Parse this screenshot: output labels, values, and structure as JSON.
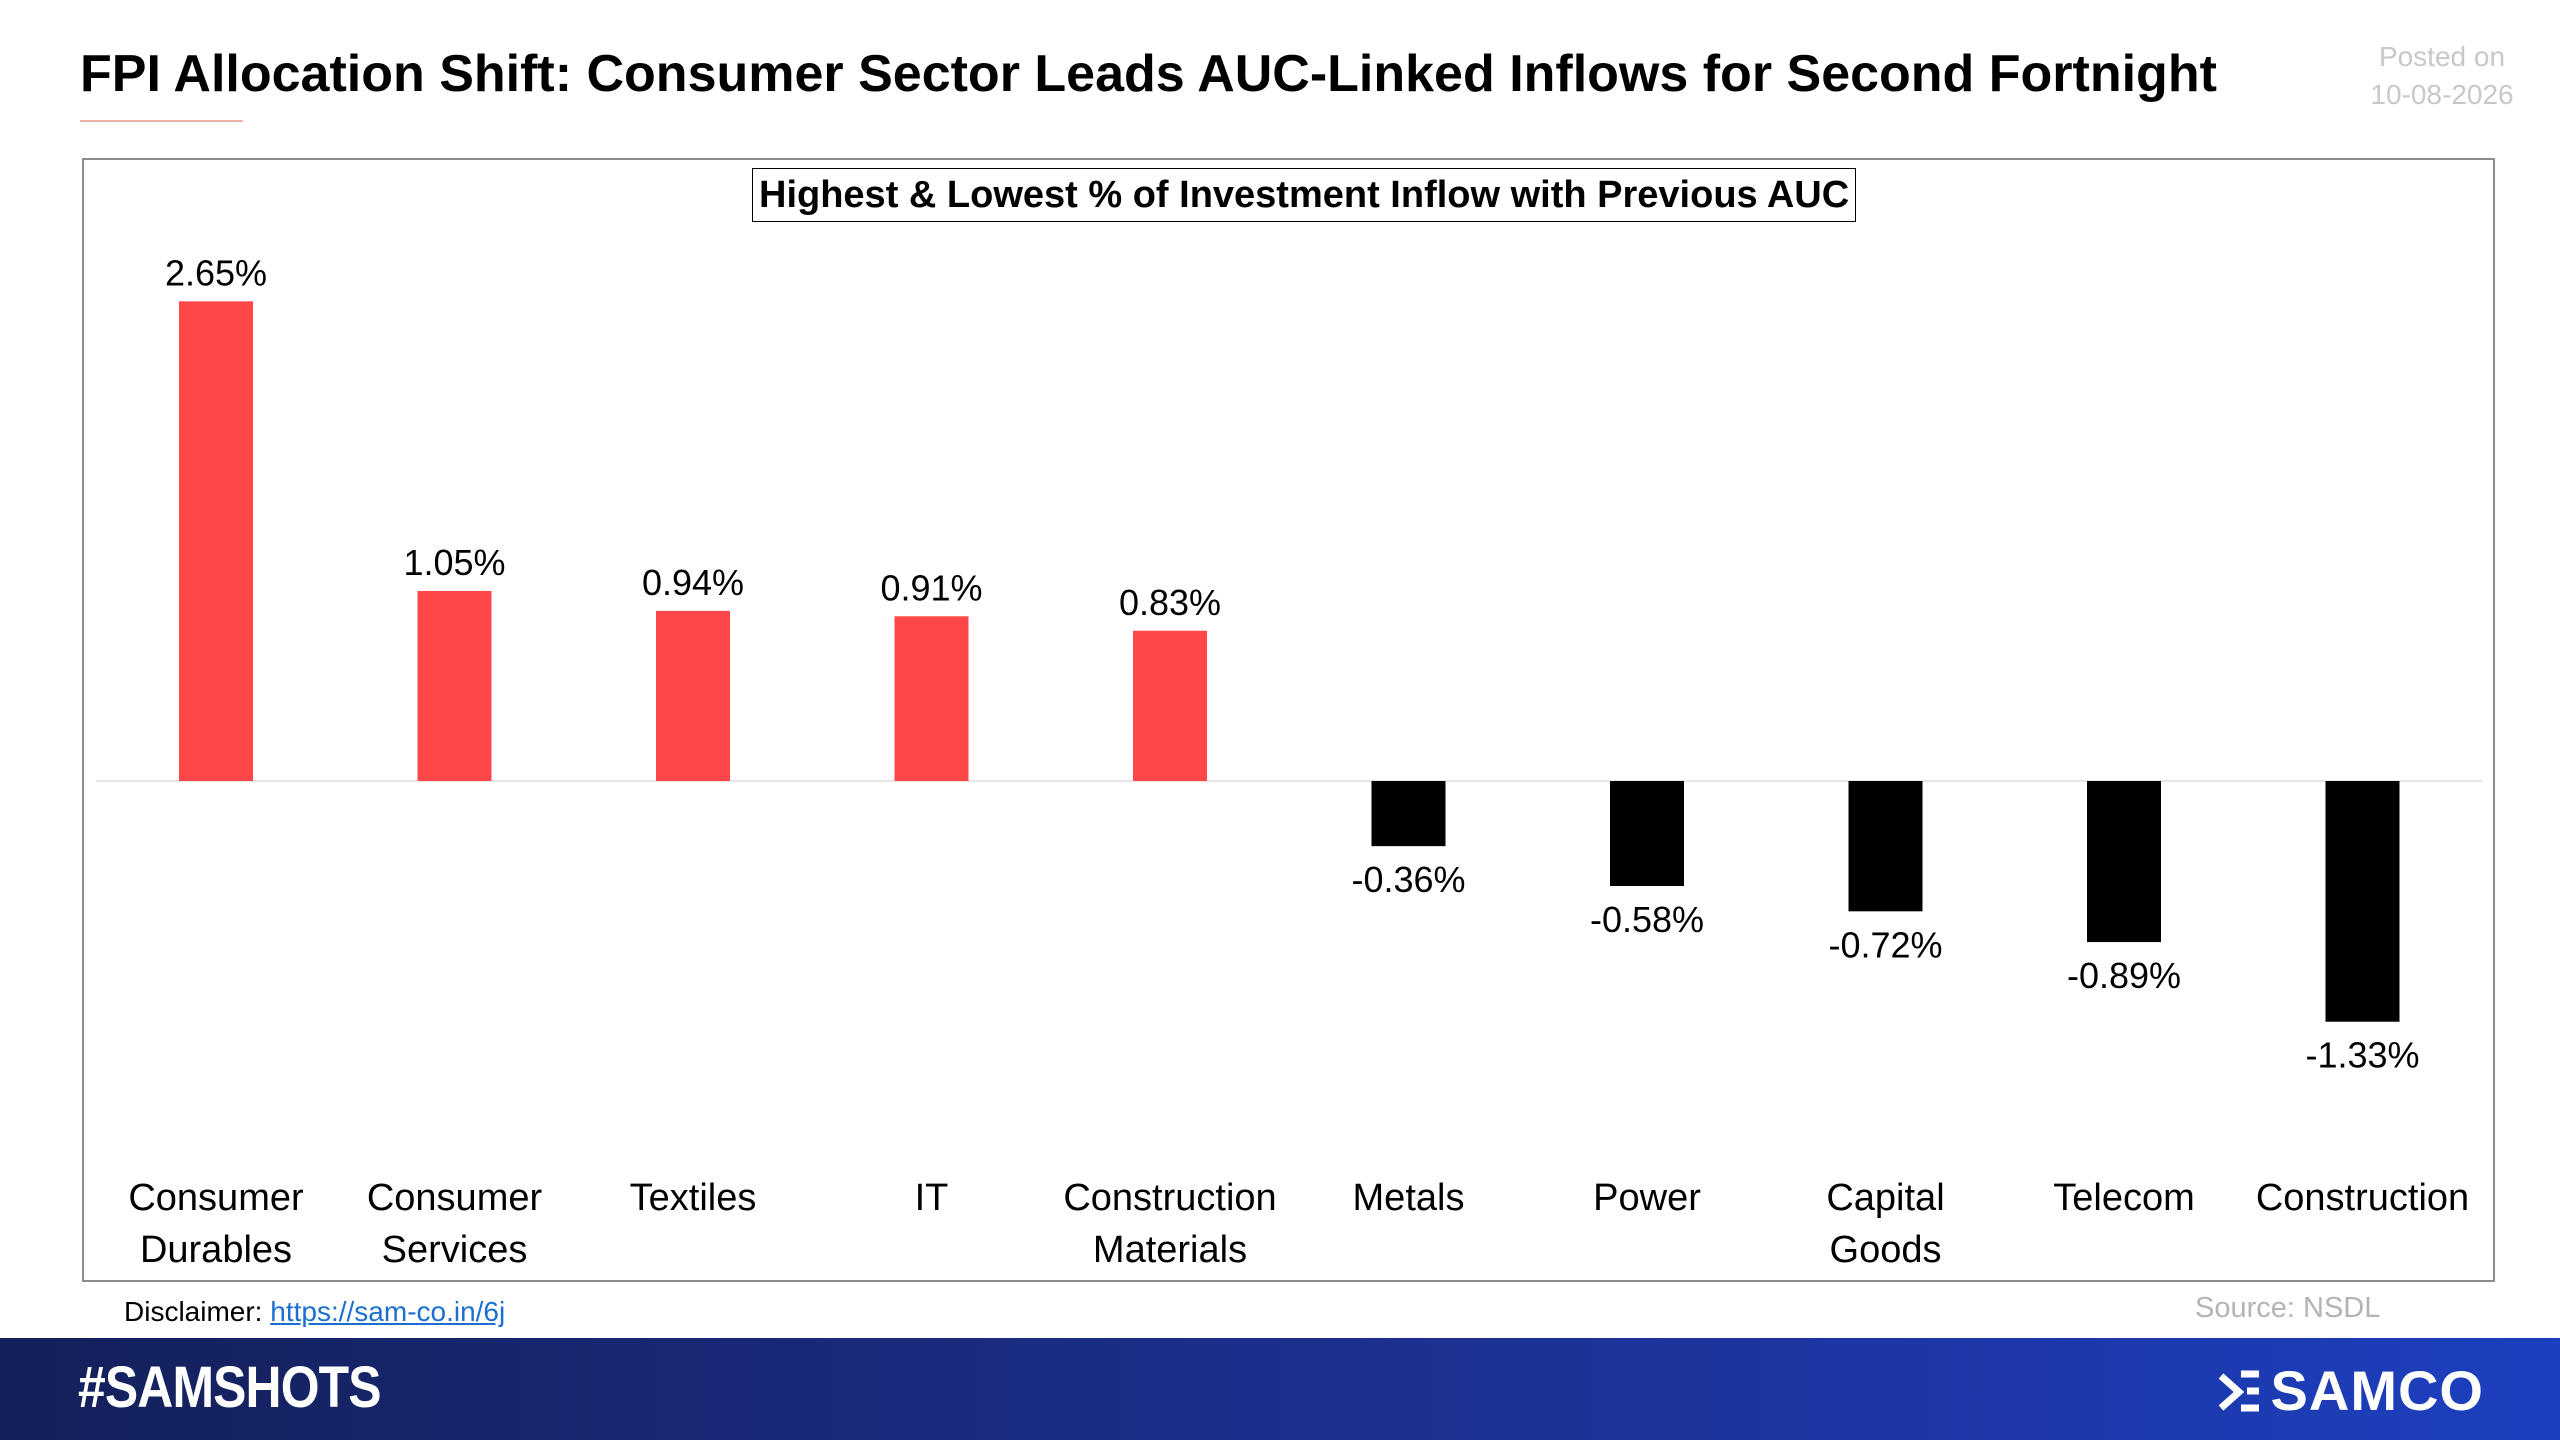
{
  "header": {
    "title": "FPI Allocation Shift: Consumer Sector Leads AUC-Linked Inflows for Second Fortnight",
    "posted_label": "Posted on",
    "posted_date": "10-08-2026"
  },
  "chart_data": {
    "type": "bar",
    "title": "Highest & Lowest % of Investment Inflow with Previous AUC",
    "categories": [
      "Consumer\nDurables",
      "Consumer\nServices",
      "Textiles",
      "IT",
      "Construction\nMaterials",
      "Metals",
      "Power",
      "Capital\nGoods",
      "Telecom",
      "Construction"
    ],
    "values": [
      2.65,
      1.05,
      0.94,
      0.91,
      0.83,
      -0.36,
      -0.58,
      -0.72,
      -0.89,
      -1.33
    ],
    "data_labels": [
      "2.65%",
      "1.05%",
      "0.94%",
      "0.91%",
      "0.83%",
      "-0.36%",
      "-0.58%",
      "-0.72%",
      "-0.89%",
      "-1.33%"
    ],
    "colors": {
      "positive": "#ff474a",
      "negative": "#000000"
    },
    "xlabel": "",
    "ylabel": "",
    "grid": false
  },
  "footer": {
    "disclaimer_label": "Disclaimer:",
    "disclaimer_link": "https://sam-co.in/6j",
    "source": "Source: NSDL",
    "hashtag": "#SAMSHOTS",
    "brand": "SAMCO"
  }
}
